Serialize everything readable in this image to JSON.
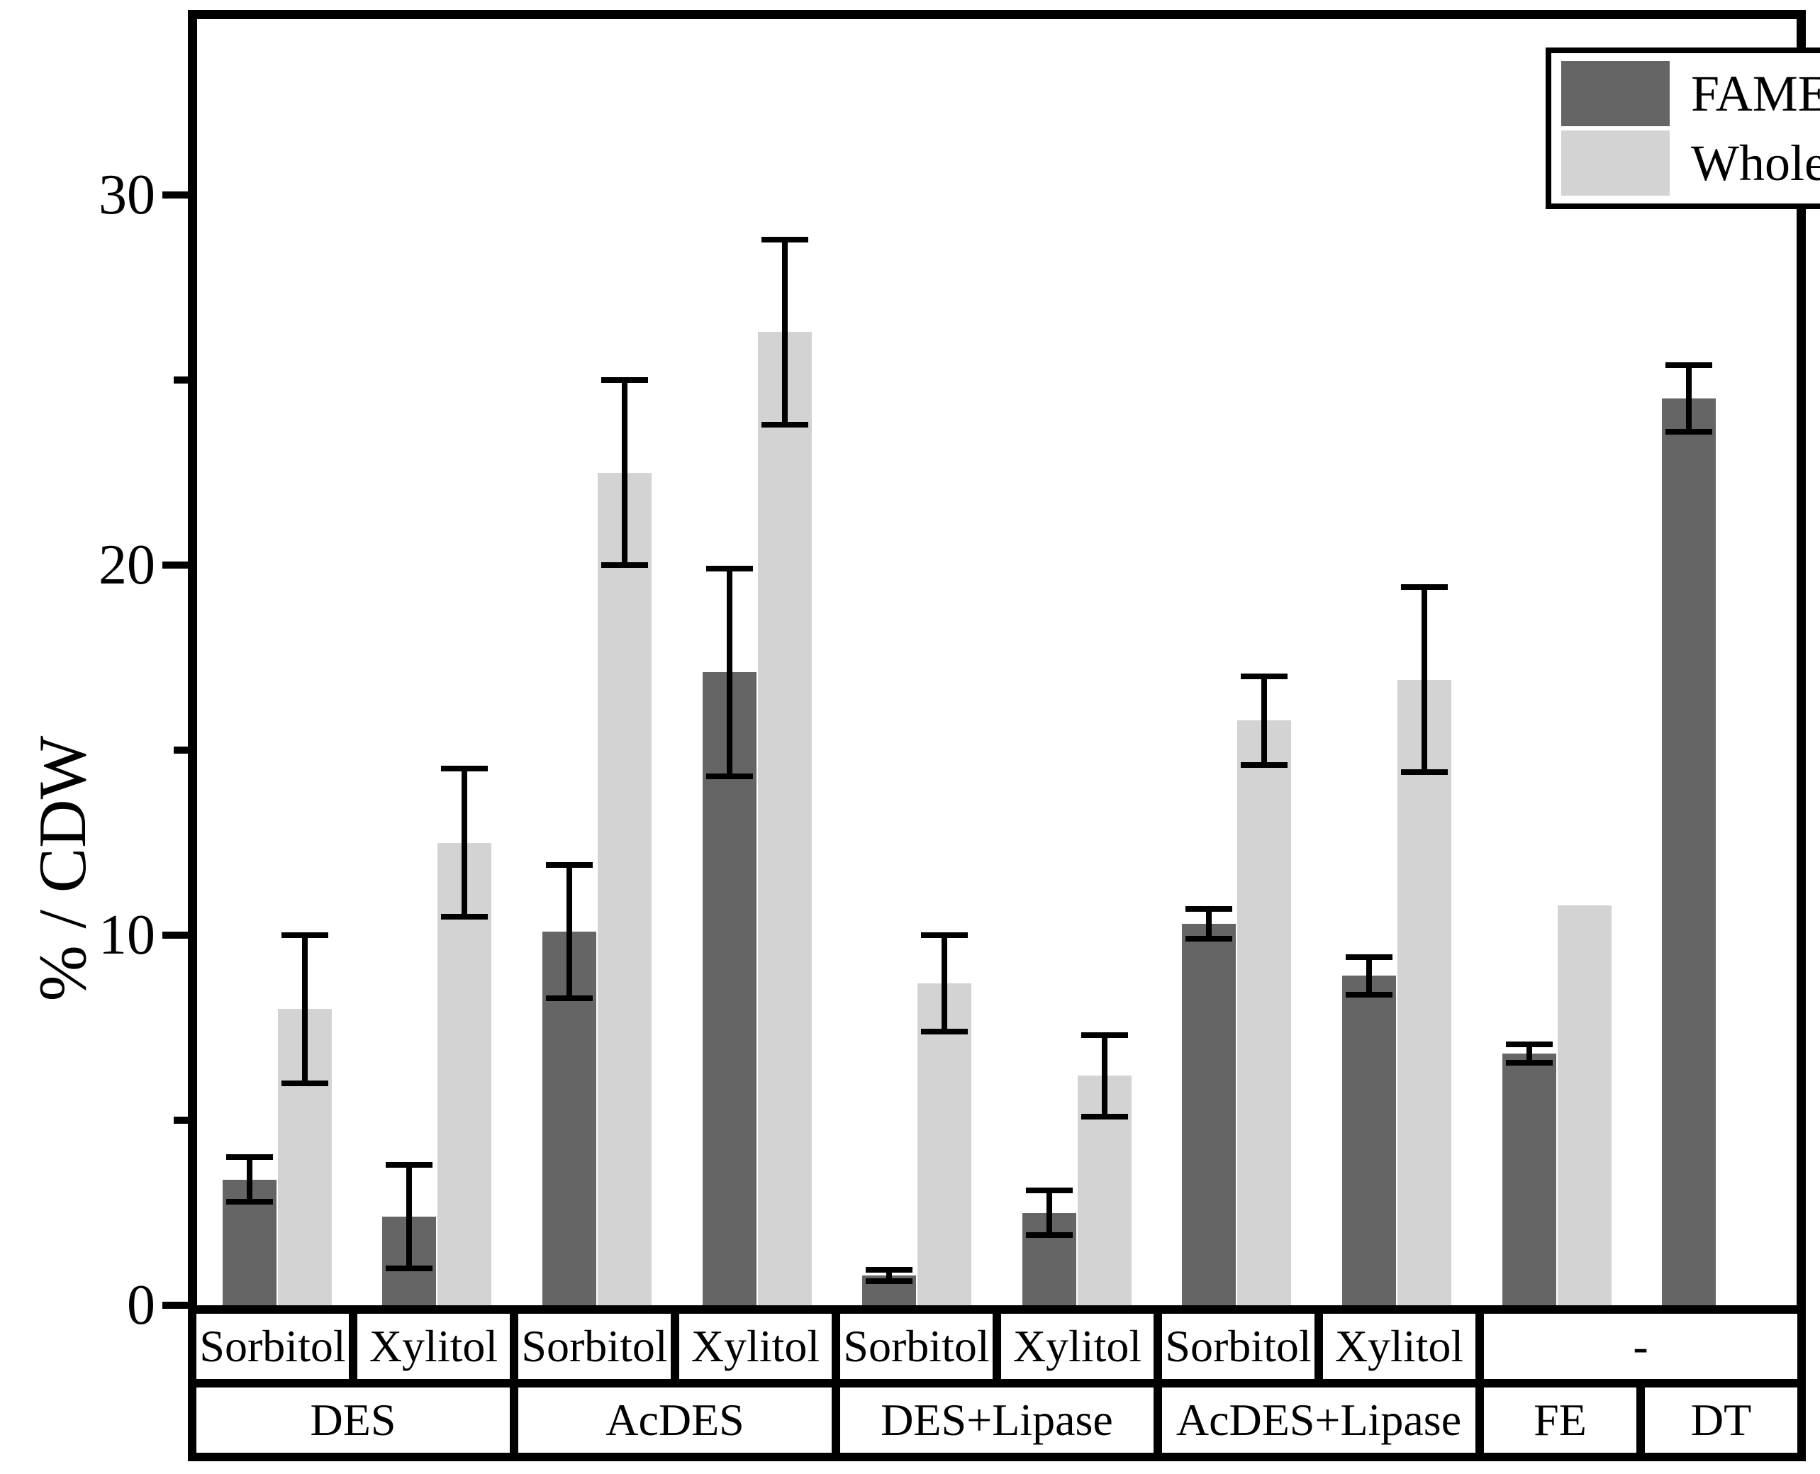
{
  "figure": {
    "background": "#ffffff",
    "frame_color": "#000000"
  },
  "axis": {
    "ylabel": "% / CDW",
    "ymin": 0,
    "ymax": 35,
    "yticks_major": [
      0,
      10,
      20,
      30
    ],
    "yticks_minor": [
      5,
      15,
      25
    ]
  },
  "legend": {
    "items": [
      {
        "label": "FAMEs",
        "color": "#656565"
      },
      {
        "label": "Whole lipids",
        "color": "#d3d3d3"
      }
    ]
  },
  "chart_data": {
    "type": "bar",
    "title": "",
    "xlabel": "",
    "ylabel": "% / CDW",
    "ylim": [
      0,
      35
    ],
    "grid": false,
    "legend_position": "top-right",
    "categories": [
      "DES Sorbitol",
      "DES Xylitol",
      "AcDES Sorbitol",
      "AcDES Xylitol",
      "DES+Lipase Sorbitol",
      "DES+Lipase Xylitol",
      "AcDES+Lipase Sorbitol",
      "AcDES+Lipase Xylitol",
      "FE",
      "DT"
    ],
    "series": [
      {
        "name": "FAMEs",
        "color": "#656565",
        "values": [
          3.4,
          2.4,
          10.1,
          17.1,
          0.8,
          2.5,
          10.3,
          8.9,
          6.8,
          24.5
        ],
        "errors": [
          0.6,
          1.4,
          1.8,
          2.8,
          0.15,
          0.6,
          0.4,
          0.5,
          0.25,
          0.9
        ]
      },
      {
        "name": "Whole lipids",
        "color": "#d3d3d3",
        "values": [
          8.0,
          12.5,
          22.5,
          26.3,
          8.7,
          6.2,
          15.8,
          16.9,
          10.8,
          null
        ],
        "errors": [
          2.0,
          2.0,
          2.5,
          2.5,
          1.3,
          1.1,
          1.2,
          2.5,
          null,
          null
        ]
      }
    ]
  },
  "xaxis_table": {
    "row1": [
      {
        "label": "Sorbitol",
        "span": 1
      },
      {
        "label": "Xylitol",
        "span": 1
      },
      {
        "label": "Sorbitol",
        "span": 1
      },
      {
        "label": "Xylitol",
        "span": 1
      },
      {
        "label": "Sorbitol",
        "span": 1
      },
      {
        "label": "Xylitol",
        "span": 1
      },
      {
        "label": "Sorbitol",
        "span": 1
      },
      {
        "label": "Xylitol",
        "span": 1
      },
      {
        "label": "-",
        "span": 2
      }
    ],
    "row2": [
      {
        "label": "DES",
        "span": 2
      },
      {
        "label": "AcDES",
        "span": 2
      },
      {
        "label": "DES+Lipase",
        "span": 2
      },
      {
        "label": "AcDES+Lipase",
        "span": 2
      },
      {
        "label": "FE",
        "span": 1
      },
      {
        "label": "DT",
        "span": 1
      }
    ]
  }
}
